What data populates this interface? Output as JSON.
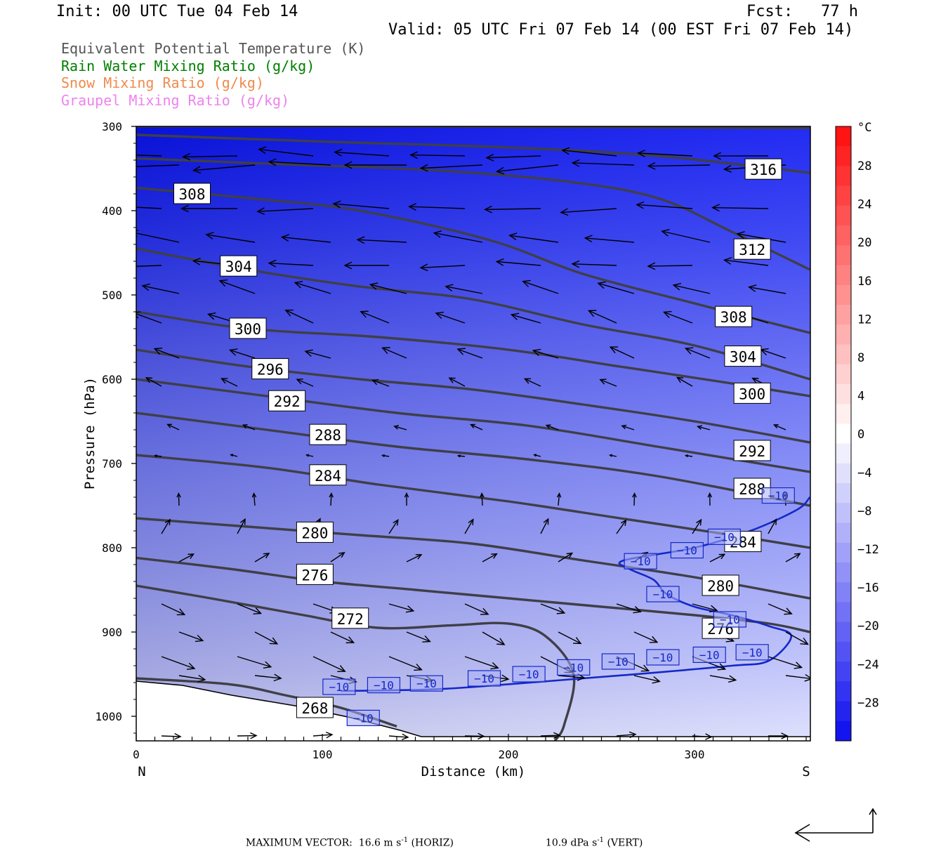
{
  "header": {
    "init": "Init: 00 UTC Tue 04 Feb 14",
    "fcst": "Fcst:   77 h",
    "valid": "Valid: 05 UTC Fri 07 Feb 14 (00 EST Fri 07 Feb 14)"
  },
  "legend": [
    {
      "label": "Equivalent Potential Temperature (K)",
      "color": "#555555"
    },
    {
      "label": "Rain Water Mixing Ratio (g/kg)",
      "color": "#008000"
    },
    {
      "label": "Snow Mixing Ratio (g/kg)",
      "color": "#f08a4b"
    },
    {
      "label": "Graupel Mixing Ratio (g/kg)",
      "color": "#ee82ee"
    }
  ],
  "footer": {
    "max_vector": "MAXIMUM VECTOR:  16.6 m s",
    "horiz": " (HORIZ)",
    "vert_value": "10.9 dPa s",
    "vert": " (VERT)",
    "unit_exp": "-1"
  },
  "chart_data": {
    "type": "cross-section",
    "xlabel": "Distance (km)",
    "ylabel": "Pressure (hPa)",
    "xlim": [
      0,
      362
    ],
    "ylim": [
      1029,
      300
    ],
    "x_ticks": [
      0,
      100,
      200,
      300
    ],
    "y_ticks": [
      300,
      400,
      500,
      600,
      700,
      800,
      900,
      1000
    ],
    "x_end_labels": {
      "left": "N",
      "right": "S"
    },
    "colorbar": {
      "unit": "°C",
      "labels": [
        "28",
        "24",
        "20",
        "16",
        "12",
        "8",
        "4",
        "0",
        "-4",
        "-8",
        "-12",
        "-16",
        "-20",
        "-24",
        "-28"
      ]
    },
    "theta_e_isentropes": [
      {
        "value": 268,
        "points": [
          [
            0,
            955
          ],
          [
            50,
            962
          ],
          [
            80,
            975
          ],
          [
            110,
            990
          ],
          [
            140,
            1012
          ]
        ]
      },
      {
        "value": 272,
        "points": [
          [
            0,
            845
          ],
          [
            40,
            860
          ],
          [
            90,
            880
          ],
          [
            130,
            895
          ],
          [
            170,
            892
          ],
          [
            200,
            890
          ],
          [
            220,
            905
          ],
          [
            235,
            950
          ],
          [
            230,
            1010
          ],
          [
            225,
            1029
          ]
        ]
      },
      {
        "value": 276,
        "points": [
          [
            0,
            812
          ],
          [
            50,
            825
          ],
          [
            100,
            840
          ],
          [
            150,
            850
          ],
          [
            200,
            860
          ],
          [
            250,
            870
          ],
          [
            300,
            880
          ],
          [
            340,
            890
          ],
          [
            362,
            900
          ]
        ]
      },
      {
        "value": 280,
        "points": [
          [
            0,
            765
          ],
          [
            60,
            775
          ],
          [
            120,
            785
          ],
          [
            180,
            795
          ],
          [
            240,
            815
          ],
          [
            300,
            835
          ],
          [
            362,
            860
          ]
        ]
      },
      {
        "value": 284,
        "points": [
          [
            0,
            690
          ],
          [
            70,
            705
          ],
          [
            130,
            725
          ],
          [
            200,
            745
          ],
          [
            260,
            765
          ],
          [
            320,
            785
          ],
          [
            362,
            800
          ]
        ]
      },
      {
        "value": 288,
        "points": [
          [
            0,
            640
          ],
          [
            70,
            660
          ],
          [
            140,
            680
          ],
          [
            210,
            695
          ],
          [
            280,
            715
          ],
          [
            362,
            750
          ]
        ]
      },
      {
        "value": 292,
        "points": [
          [
            0,
            600
          ],
          [
            70,
            620
          ],
          [
            140,
            640
          ],
          [
            210,
            655
          ],
          [
            280,
            680
          ],
          [
            362,
            710
          ]
        ]
      },
      {
        "value": 296,
        "points": [
          [
            0,
            565
          ],
          [
            60,
            585
          ],
          [
            120,
            600
          ],
          [
            180,
            612
          ],
          [
            240,
            630
          ],
          [
            300,
            650
          ],
          [
            362,
            675
          ]
        ]
      },
      {
        "value": 300,
        "points": [
          [
            0,
            520
          ],
          [
            60,
            540
          ],
          [
            130,
            550
          ],
          [
            200,
            565
          ],
          [
            260,
            585
          ],
          [
            320,
            605
          ],
          [
            362,
            620
          ]
        ]
      },
      {
        "value": 304,
        "points": [
          [
            0,
            445
          ],
          [
            60,
            470
          ],
          [
            120,
            490
          ],
          [
            180,
            505
          ],
          [
            240,
            535
          ],
          [
            300,
            560
          ],
          [
            362,
            600
          ]
        ]
      },
      {
        "value": 308,
        "points": [
          [
            0,
            373
          ],
          [
            60,
            385
          ],
          [
            120,
            400
          ],
          [
            190,
            435
          ],
          [
            240,
            475
          ],
          [
            300,
            510
          ],
          [
            362,
            545
          ]
        ]
      },
      {
        "value": 312,
        "points": [
          [
            0,
            338
          ],
          [
            80,
            345
          ],
          [
            160,
            352
          ],
          [
            230,
            365
          ],
          [
            280,
            385
          ],
          [
            320,
            425
          ],
          [
            362,
            470
          ]
        ]
      },
      {
        "value": 316,
        "points": [
          [
            0,
            310
          ],
          [
            100,
            318
          ],
          [
            200,
            325
          ],
          [
            280,
            335
          ],
          [
            362,
            355
          ]
        ]
      },
      {
        "value": null,
        "points": [
          [
            0,
            300
          ],
          [
            150,
            300
          ],
          [
            362,
            302
          ]
        ]
      }
    ],
    "isentrope_labels": [
      {
        "text": "308",
        "x": 30,
        "p": 380
      },
      {
        "text": "304",
        "x": 55,
        "p": 466
      },
      {
        "text": "300",
        "x": 60,
        "p": 540
      },
      {
        "text": "296",
        "x": 72,
        "p": 588
      },
      {
        "text": "292",
        "x": 81,
        "p": 626
      },
      {
        "text": "288",
        "x": 103,
        "p": 666
      },
      {
        "text": "284",
        "x": 103,
        "p": 714
      },
      {
        "text": "280",
        "x": 96,
        "p": 782
      },
      {
        "text": "276",
        "x": 96,
        "p": 832
      },
      {
        "text": "272",
        "x": 115,
        "p": 884
      },
      {
        "text": "268",
        "x": 96,
        "p": 990
      },
      {
        "text": "316",
        "x": 337,
        "p": 351
      },
      {
        "text": "312",
        "x": 331,
        "p": 446
      },
      {
        "text": "308",
        "x": 321,
        "p": 526
      },
      {
        "text": "304",
        "x": 326,
        "p": 573
      },
      {
        "text": "300",
        "x": 331,
        "p": 617
      },
      {
        "text": "292",
        "x": 331,
        "p": 685
      },
      {
        "text": "288",
        "x": 331,
        "p": 730
      },
      {
        "text": "284",
        "x": 326,
        "p": 793
      },
      {
        "text": "280",
        "x": 314,
        "p": 845
      },
      {
        "text": "276",
        "x": 314,
        "p": 896
      }
    ],
    "temperature_contour": {
      "value": -10,
      "points": [
        [
          110,
          970
        ],
        [
          160,
          968
        ],
        [
          200,
          962
        ],
        [
          240,
          955
        ],
        [
          280,
          948
        ],
        [
          320,
          940
        ],
        [
          340,
          934
        ],
        [
          352,
          905
        ],
        [
          340,
          893
        ],
        [
          320,
          880
        ],
        [
          300,
          870
        ],
        [
          285,
          855
        ],
        [
          278,
          838
        ],
        [
          265,
          825
        ],
        [
          262,
          815
        ],
        [
          300,
          800
        ],
        [
          330,
          780
        ],
        [
          355,
          755
        ],
        [
          362,
          740
        ]
      ],
      "labels": [
        {
          "text": "-10",
          "x": 122,
          "p": 1002
        },
        {
          "text": "-10",
          "x": 109,
          "p": 965
        },
        {
          "text": "-10",
          "x": 133,
          "p": 963
        },
        {
          "text": "-10",
          "x": 156,
          "p": 961
        },
        {
          "text": "-10",
          "x": 187,
          "p": 955
        },
        {
          "text": "-10",
          "x": 211,
          "p": 950
        },
        {
          "text": "-10",
          "x": 235,
          "p": 942
        },
        {
          "text": "-10",
          "x": 259,
          "p": 935
        },
        {
          "text": "-10",
          "x": 283,
          "p": 930
        },
        {
          "text": "-10",
          "x": 308,
          "p": 927
        },
        {
          "text": "-10",
          "x": 331,
          "p": 924
        },
        {
          "text": "-10",
          "x": 271,
          "p": 816
        },
        {
          "text": "-10",
          "x": 296,
          "p": 803
        },
        {
          "text": "-10",
          "x": 316,
          "p": 787
        },
        {
          "text": "-10",
          "x": 345,
          "p": 738
        },
        {
          "text": "-10",
          "x": 283,
          "p": 855
        },
        {
          "text": "-10",
          "x": 319,
          "p": 885
        }
      ]
    }
  }
}
